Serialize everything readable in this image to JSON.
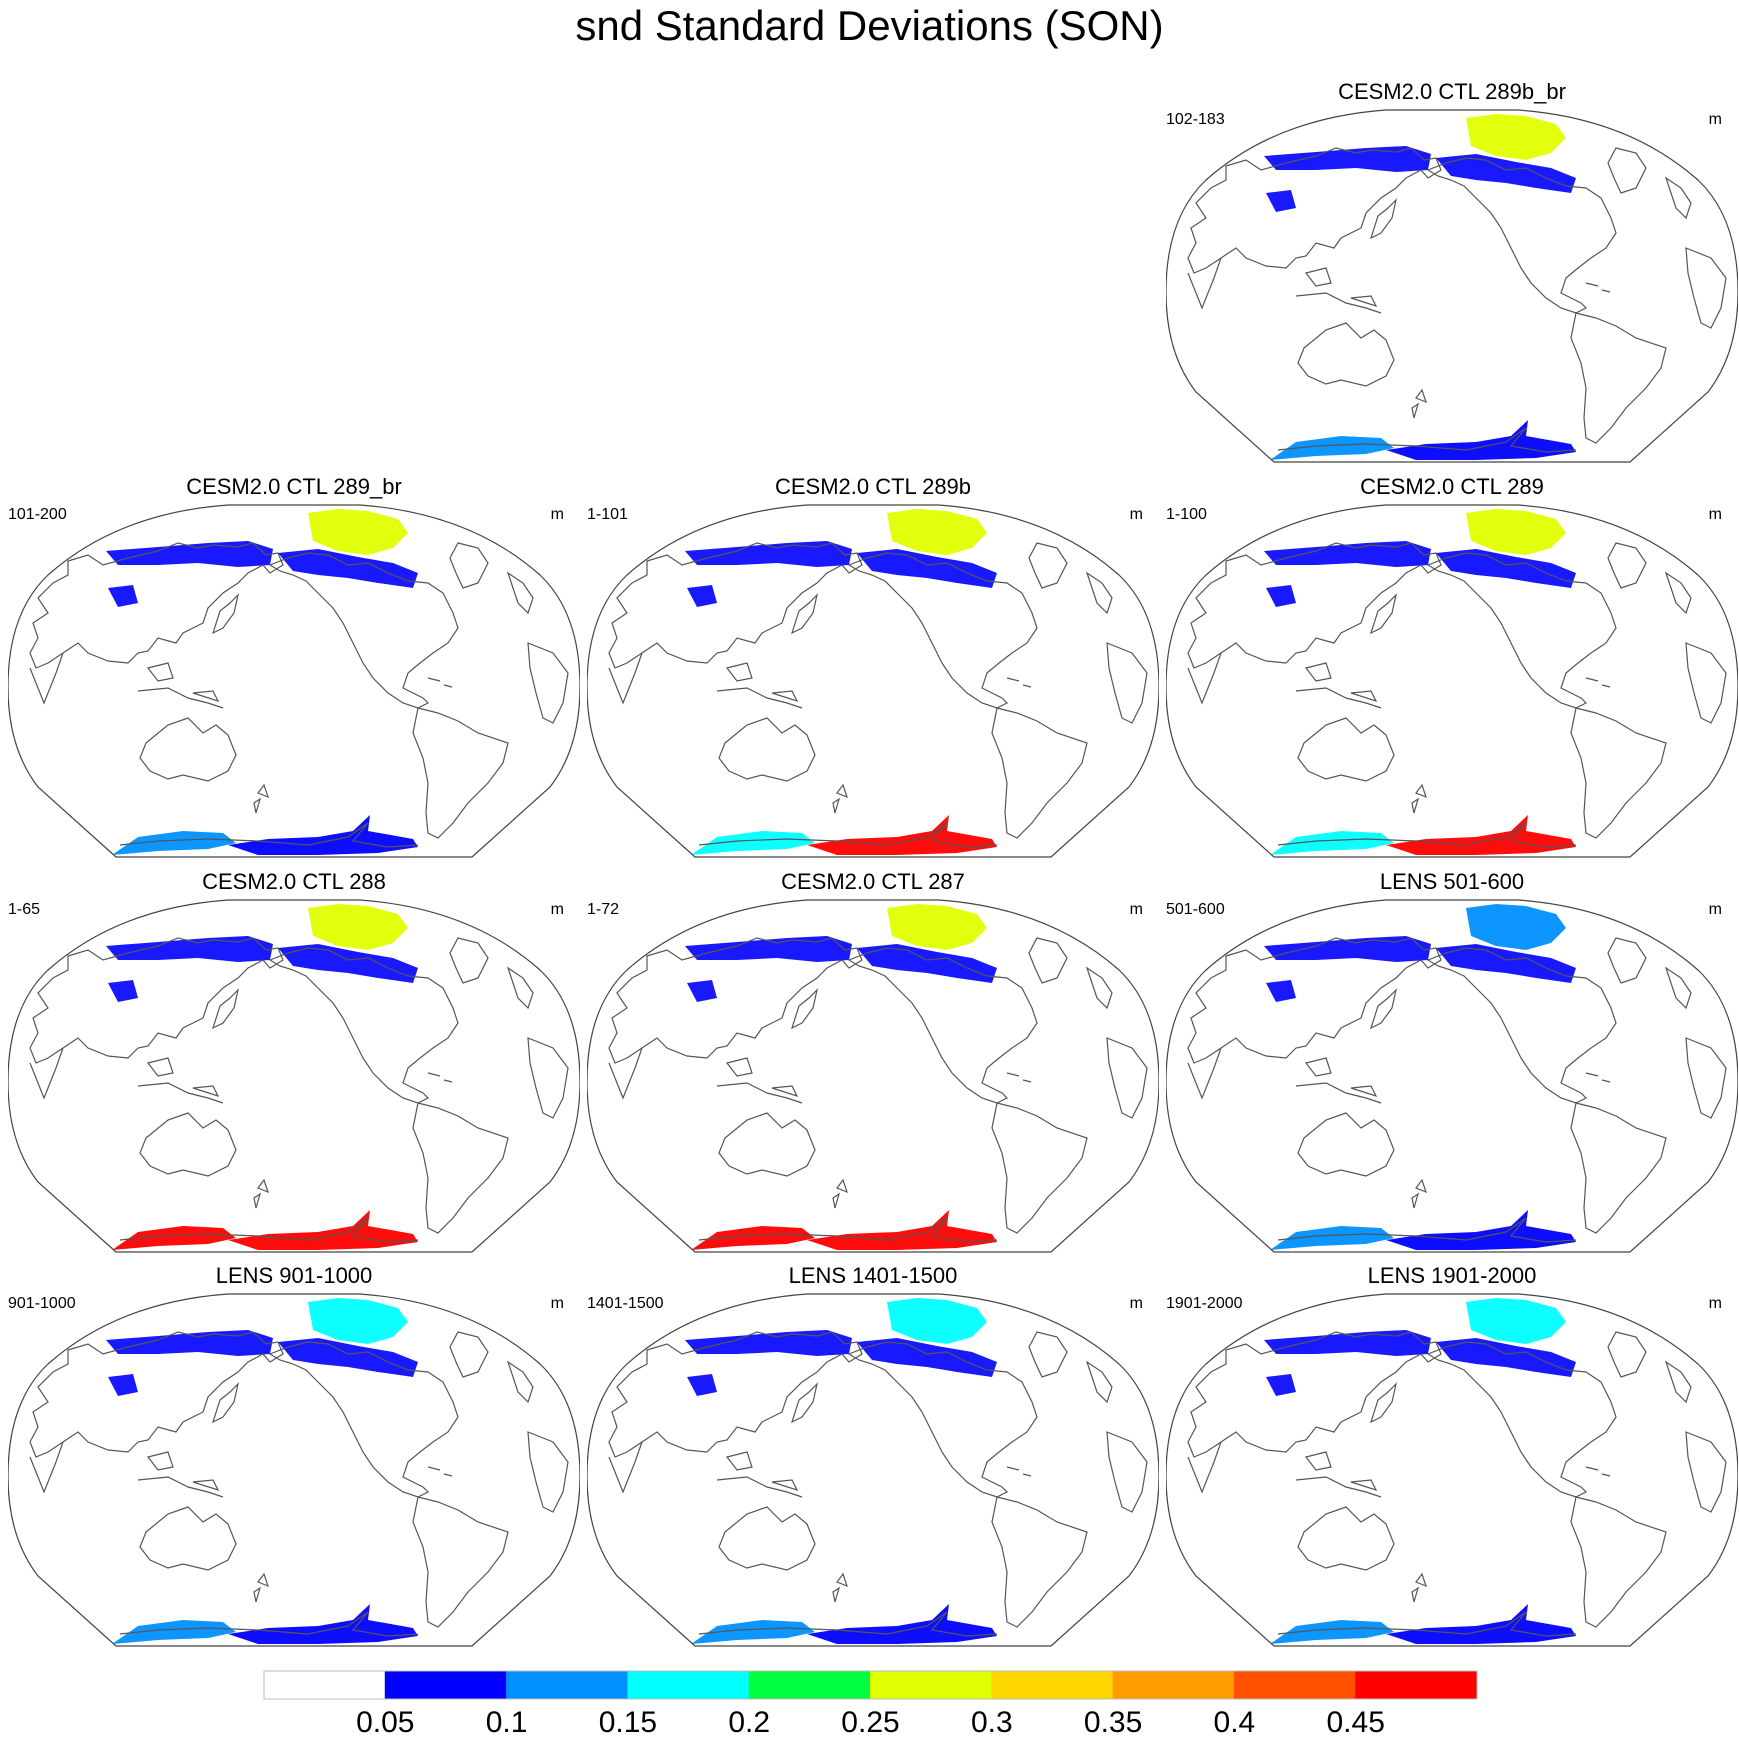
{
  "title": "snd Standard Deviations (SON)",
  "colors": {
    "coast": "#555555",
    "frame": "#444444",
    "levels": [
      "#ffffff",
      "#0000ff",
      "#0090ff",
      "#00ffff",
      "#00ff40",
      "#e0ff00",
      "#ffd700",
      "#ff9c00",
      "#ff5000",
      "#ff0000"
    ]
  },
  "panels": [
    {
      "title": "CESM2.0 CTL 289b_br",
      "range": "102-183",
      "unit": "m",
      "north": {
        "greenland": 5,
        "siberia": 1,
        "canada": 1,
        "asia": 1
      },
      "south": {
        "west": 2,
        "east": 1
      }
    },
    {
      "title": "CESM2.0 CTL 289_br",
      "range": "101-200",
      "unit": "m",
      "north": {
        "greenland": 5,
        "siberia": 1,
        "canada": 1,
        "asia": 1
      },
      "south": {
        "west": 2,
        "east": 1
      }
    },
    {
      "title": "CESM2.0 CTL 289b",
      "range": "1-101",
      "unit": "m",
      "north": {
        "greenland": 5,
        "siberia": 1,
        "canada": 1,
        "asia": 1
      },
      "south": {
        "west": 3,
        "east": 9
      }
    },
    {
      "title": "CESM2.0 CTL 289",
      "range": "1-100",
      "unit": "m",
      "north": {
        "greenland": 5,
        "siberia": 1,
        "canada": 1,
        "asia": 1
      },
      "south": {
        "west": 3,
        "east": 9
      }
    },
    {
      "title": "CESM2.0 CTL 288",
      "range": "1-65",
      "unit": "m",
      "north": {
        "greenland": 5,
        "siberia": 1,
        "canada": 1,
        "asia": 1
      },
      "south": {
        "west": 9,
        "east": 9
      }
    },
    {
      "title": "CESM2.0 CTL 287",
      "range": "1-72",
      "unit": "m",
      "north": {
        "greenland": 5,
        "siberia": 1,
        "canada": 1,
        "asia": 1
      },
      "south": {
        "west": 9,
        "east": 9
      }
    },
    {
      "title": "LENS 501-600",
      "range": "501-600",
      "unit": "m",
      "north": {
        "greenland": 2,
        "siberia": 1,
        "canada": 1,
        "asia": 1
      },
      "south": {
        "west": 2,
        "east": 1
      }
    },
    {
      "title": "LENS 901-1000",
      "range": "901-1000",
      "unit": "m",
      "north": {
        "greenland": 3,
        "siberia": 1,
        "canada": 1,
        "asia": 1
      },
      "south": {
        "west": 2,
        "east": 1
      }
    },
    {
      "title": "LENS 1401-1500",
      "range": "1401-1500",
      "unit": "m",
      "north": {
        "greenland": 3,
        "siberia": 1,
        "canada": 1,
        "asia": 1
      },
      "south": {
        "west": 2,
        "east": 1
      }
    },
    {
      "title": "LENS 1901-2000",
      "range": "1901-2000",
      "unit": "m",
      "north": {
        "greenland": 3,
        "siberia": 1,
        "canada": 1,
        "asia": 1
      },
      "south": {
        "west": 2,
        "east": 1
      }
    }
  ],
  "colorbar": {
    "labels": [
      "0.05",
      "0.1",
      "0.15",
      "0.2",
      "0.25",
      "0.3",
      "0.35",
      "0.4",
      "0.45"
    ]
  }
}
